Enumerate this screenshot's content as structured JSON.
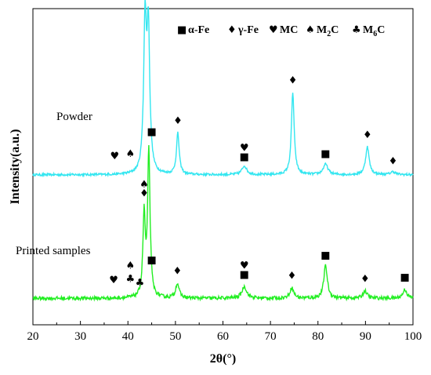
{
  "chart_data": {
    "type": "line",
    "xlabel": "2θ(°)",
    "ylabel": "Intensity(a.u.)",
    "xlim": [
      20,
      100
    ],
    "xticks": [
      20,
      30,
      40,
      50,
      60,
      70,
      80,
      90,
      100
    ],
    "yticks_shown": false,
    "grid": false,
    "legend_position": "top-right",
    "legend": [
      {
        "symbol": "square",
        "glyph": "■",
        "label": "α-Fe"
      },
      {
        "symbol": "diamond",
        "glyph": "♦",
        "label": "γ-Fe"
      },
      {
        "symbol": "heart",
        "glyph": "♥",
        "label": "MC"
      },
      {
        "symbol": "spade",
        "glyph": "♠",
        "label": "M",
        "sub": "2",
        "suffix": "C"
      },
      {
        "symbol": "club",
        "glyph": "♣",
        "label": "M",
        "sub": "6",
        "suffix": "C"
      }
    ],
    "series": [
      {
        "name": "Powder",
        "color": "#33e6f0",
        "baseline": 0.22,
        "noise": 0.008,
        "peaks": [
          {
            "x": 43.6,
            "h": 1.0,
            "w": 0.35
          },
          {
            "x": 44.3,
            "h": 0.95,
            "w": 0.35
          },
          {
            "x": 50.5,
            "h": 0.28,
            "w": 0.35
          },
          {
            "x": 64.5,
            "h": 0.06,
            "w": 0.6
          },
          {
            "x": 74.7,
            "h": 0.56,
            "w": 0.35
          },
          {
            "x": 81.6,
            "h": 0.07,
            "w": 0.6
          },
          {
            "x": 90.4,
            "h": 0.19,
            "w": 0.45
          },
          {
            "x": 95.8,
            "h": 0.02,
            "w": 0.6
          }
        ],
        "markers": [
          {
            "x": 37.2,
            "glyph": "♥",
            "dy": 0.1
          },
          {
            "x": 40.5,
            "glyph": "♠",
            "dy": 0.1
          },
          {
            "x": 43.6,
            "glyph": "♠",
            "dy": 0.14
          },
          {
            "x": 43.6,
            "glyph": "♦",
            "dy": 0.08
          },
          {
            "x": 45.0,
            "glyph": "■",
            "dy": 0.02
          },
          {
            "x": 50.5,
            "glyph": "♦",
            "dy": 0.06
          },
          {
            "x": 64.5,
            "glyph": "♥",
            "dy": 0.1
          },
          {
            "x": 64.5,
            "glyph": "■",
            "dy": 0.04
          },
          {
            "x": 74.7,
            "glyph": "♦",
            "dy": 0.06
          },
          {
            "x": 81.6,
            "glyph": "■",
            "dy": 0.05
          },
          {
            "x": 90.4,
            "glyph": "♦",
            "dy": 0.06
          },
          {
            "x": 95.8,
            "glyph": "♦",
            "dy": 0.05
          }
        ]
      },
      {
        "name": "Printed samples",
        "color": "#22ee22",
        "baseline": -0.62,
        "noise": 0.012,
        "peaks": [
          {
            "x": 43.4,
            "h": 0.55,
            "w": 0.3
          },
          {
            "x": 44.4,
            "h": 1.0,
            "w": 0.3
          },
          {
            "x": 50.4,
            "h": 0.1,
            "w": 0.45
          },
          {
            "x": 64.5,
            "h": 0.08,
            "w": 0.6
          },
          {
            "x": 74.5,
            "h": 0.07,
            "w": 0.5
          },
          {
            "x": 81.6,
            "h": 0.22,
            "w": 0.45
          },
          {
            "x": 89.9,
            "h": 0.05,
            "w": 0.5
          },
          {
            "x": 98.3,
            "h": 0.06,
            "w": 0.5
          }
        ],
        "markers": [
          {
            "x": 37.0,
            "glyph": "♥",
            "dy": 0.1
          },
          {
            "x": 40.5,
            "glyph": "♠",
            "dy": 0.19
          },
          {
            "x": 40.5,
            "glyph": "♣",
            "dy": 0.1
          },
          {
            "x": 43.4,
            "glyph": "♠",
            "dy": 0.12
          },
          {
            "x": 43.4,
            "glyph": "♦",
            "dy": 0.06
          },
          {
            "x": 42.5,
            "glyph": "♣",
            "dy": 0.005
          },
          {
            "x": 45.0,
            "glyph": "■",
            "dy": 0.02
          },
          {
            "x": 50.4,
            "glyph": "♦",
            "dy": 0.06
          },
          {
            "x": 64.5,
            "glyph": "♥",
            "dy": 0.12
          },
          {
            "x": 64.5,
            "glyph": "■",
            "dy": 0.06
          },
          {
            "x": 74.5,
            "glyph": "♦",
            "dy": 0.06
          },
          {
            "x": 81.6,
            "glyph": "■",
            "dy": 0.05
          },
          {
            "x": 89.9,
            "glyph": "♦",
            "dy": 0.06
          },
          {
            "x": 98.3,
            "glyph": "■",
            "dy": 0.06
          }
        ]
      }
    ]
  }
}
